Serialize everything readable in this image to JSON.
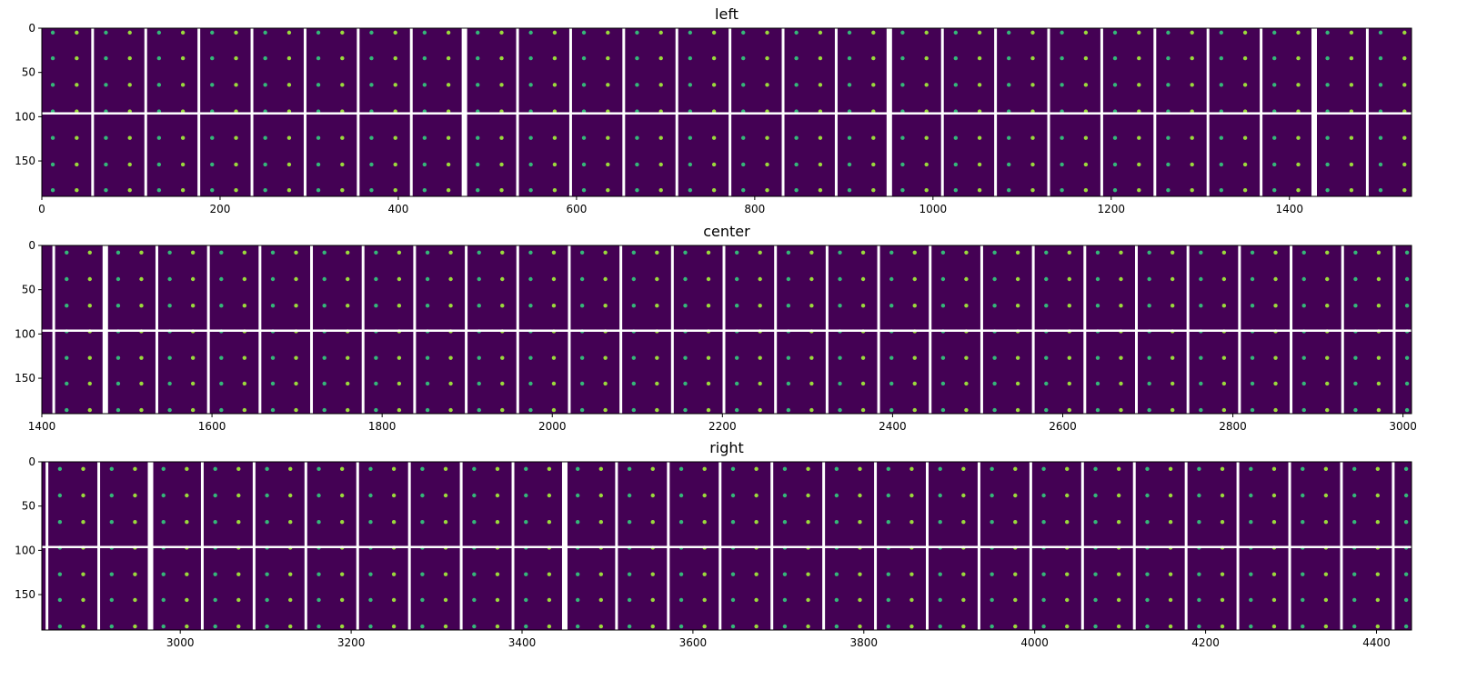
{
  "chart_data": [
    {
      "type": "heatmap",
      "title": "left",
      "xlim": [
        0,
        1537
      ],
      "ylim": [
        190,
        0
      ],
      "xticks": [
        0,
        200,
        400,
        600,
        800,
        1000,
        1200,
        1400
      ],
      "yticks": [
        0,
        50,
        100,
        150
      ],
      "colormap": "viridis",
      "gap_row": 96,
      "module_gap_start": 57,
      "module_period": 59.6,
      "wide_gaps": [
        473,
        956,
        1436
      ],
      "spot_rows": [
        5,
        34,
        64,
        94,
        124,
        154,
        183
      ]
    },
    {
      "type": "heatmap",
      "title": "center",
      "xlim": [
        1400,
        3010
      ],
      "ylim": [
        190,
        0
      ],
      "xticks": [
        1400,
        1600,
        1800,
        2000,
        2200,
        2400,
        2600,
        2800,
        3000
      ],
      "yticks": [
        0,
        50,
        100,
        150
      ],
      "colormap": "viridis",
      "gap_row": 96,
      "module_gap_start": 1414,
      "module_period": 60.6,
      "wide_gaps": [
        1476,
        1975,
        2463,
        2960
      ],
      "spot_rows": [
        8,
        38,
        68,
        97,
        127,
        156,
        186
      ]
    },
    {
      "type": "heatmap",
      "title": "right",
      "xlim": [
        2838,
        4441
      ],
      "ylim": [
        190,
        0
      ],
      "xticks": [
        3000,
        3200,
        3400,
        3600,
        3800,
        4000,
        4200,
        4400
      ],
      "yticks": [
        0,
        50,
        100,
        150
      ],
      "colormap": "viridis",
      "gap_row": 96,
      "module_gap_start": 2844,
      "module_period": 60.6,
      "wide_gaps": [
        2962,
        3454,
        3950
      ],
      "spot_rows": [
        8,
        38,
        68,
        97,
        127,
        156,
        186
      ]
    }
  ],
  "colors": {
    "background": "#440154",
    "spot": "#9bd93c",
    "spot_alt": "#35b779",
    "gap": "#ffffff"
  }
}
